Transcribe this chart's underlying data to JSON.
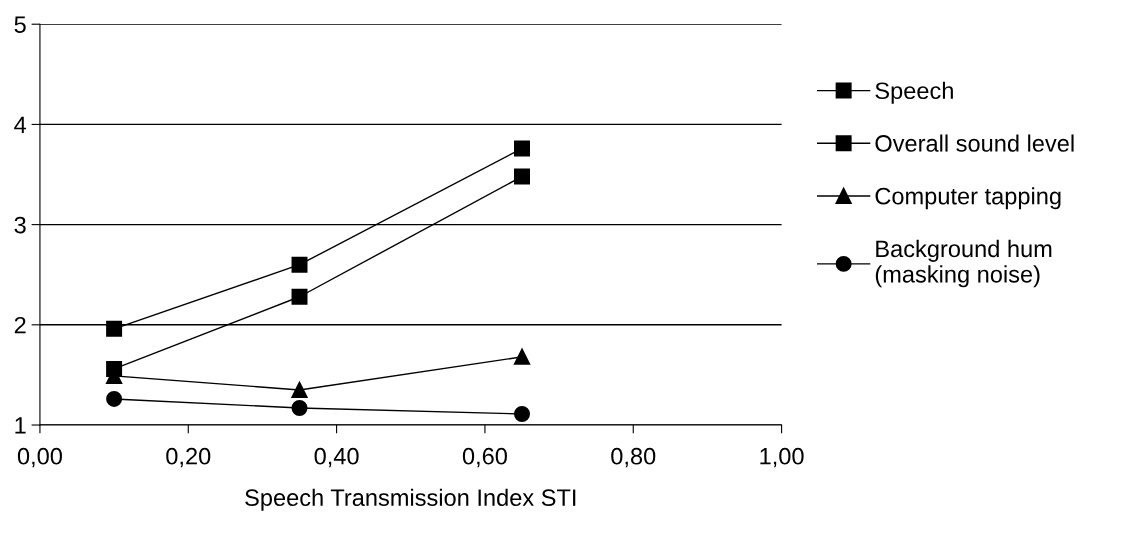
{
  "chart_data": {
    "type": "line",
    "xlabel": "Speech Transmission Index STI",
    "x": [
      0.1,
      0.35,
      0.65
    ],
    "series": [
      {
        "name": "Speech",
        "color": "#000000",
        "marker": "square",
        "values": [
          1.96,
          2.6,
          3.76
        ]
      },
      {
        "name": "Overall sound level",
        "color": "#000000",
        "marker": "square",
        "values": [
          1.56,
          2.28,
          3.48
        ]
      },
      {
        "name": "Computer tapping",
        "color": "#000000",
        "marker": "triangle",
        "values": [
          1.49,
          1.35,
          1.68
        ]
      },
      {
        "name": "Background hum\n(masking noise)",
        "color": "#000000",
        "marker": "circle",
        "values": [
          1.26,
          1.17,
          1.11
        ]
      }
    ],
    "xlim": [
      0,
      1
    ],
    "ylim": [
      1,
      5
    ],
    "xticks": [
      {
        "value": 0,
        "label": "0,00"
      },
      {
        "value": 0.2,
        "label": "0,20"
      },
      {
        "value": 0.4,
        "label": "0,40"
      },
      {
        "value": 0.6,
        "label": "0,60"
      },
      {
        "value": 0.8,
        "label": "0,80"
      },
      {
        "value": 1,
        "label": "1,00"
      }
    ],
    "yticks": [
      1,
      2,
      3,
      4,
      5
    ],
    "grid": "y",
    "legend": "right",
    "line_style": "solid"
  }
}
